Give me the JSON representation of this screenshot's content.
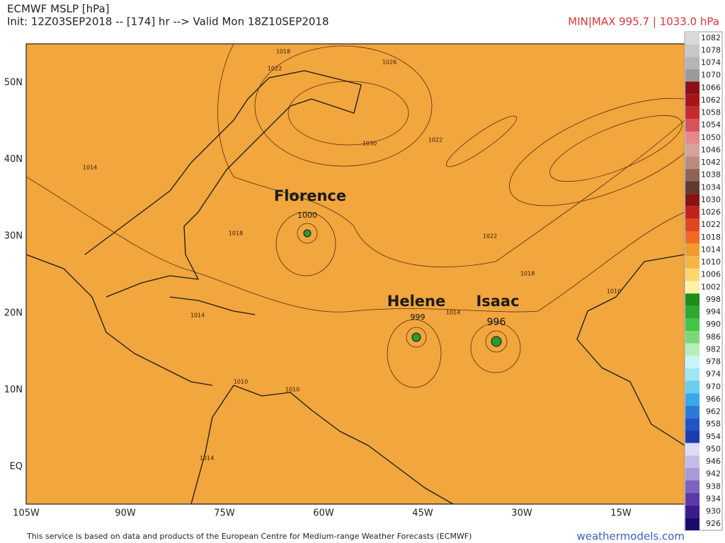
{
  "header": {
    "title": "ECMWF MSLP [hPa]",
    "init": "Init: 12Z03SEP2018 -- [174] hr --> Valid Mon 18Z10SEP2018",
    "minmax": "MIN|MAX 995.7 | 1033.0 hPa"
  },
  "map": {
    "lat_labels": [
      "50N",
      "40N",
      "30N",
      "20N",
      "10N",
      "EQ"
    ],
    "lon_labels": [
      "105W",
      "90W",
      "75W",
      "60W",
      "45W",
      "30W",
      "15W"
    ],
    "storms": [
      {
        "name": "Florence",
        "pressure": 1000
      },
      {
        "name": "Helene",
        "pressure": 999
      },
      {
        "name": "Isaac",
        "pressure": 996
      }
    ],
    "contour_labels": [
      1018,
      1022,
      1026,
      1030,
      1022,
      1014,
      1018,
      1022,
      1018,
      1014,
      1014,
      1010,
      1010,
      1010,
      1014
    ]
  },
  "colorbar": {
    "levels": [
      1082,
      1078,
      1074,
      1070,
      1066,
      1062,
      1058,
      1054,
      1050,
      1046,
      1042,
      1038,
      1034,
      1030,
      1026,
      1022,
      1018,
      1014,
      1010,
      1006,
      1002,
      998,
      994,
      990,
      986,
      982,
      978,
      974,
      970,
      966,
      962,
      958,
      954,
      950,
      946,
      942,
      938,
      934,
      930,
      926
    ],
    "colors": [
      "#d9d9d9",
      "#c8c8c8",
      "#b4b4b4",
      "#9a9a9a",
      "#8b0f14",
      "#a8141a",
      "#c62a2e",
      "#d9545a",
      "#e6898a",
      "#d7a29a",
      "#b98a7e",
      "#8e6456",
      "#5e3a30",
      "#8b1010",
      "#c0221c",
      "#e0461f",
      "#ef6a25",
      "#f39a2d",
      "#f5b445",
      "#fbd76c",
      "#fdf2a6",
      "#1e8c1e",
      "#2ea82e",
      "#44c444",
      "#7ad87a",
      "#b8ecb8",
      "#c8f4f8",
      "#9ee6f4",
      "#6ccdee",
      "#3aa8e8",
      "#2a7ad8",
      "#1f55c8",
      "#1e3cb0",
      "#e0dcf4",
      "#c4bce8",
      "#a89ad8",
      "#7c64c0",
      "#5a3aa8",
      "#3c1c8c",
      "#1a0a6a"
    ]
  },
  "footer": {
    "credit": "This service is based on data and products of the European Centre for Medium-range Weather Forecasts (ECMWF)",
    "site": "weathermodels.com"
  }
}
